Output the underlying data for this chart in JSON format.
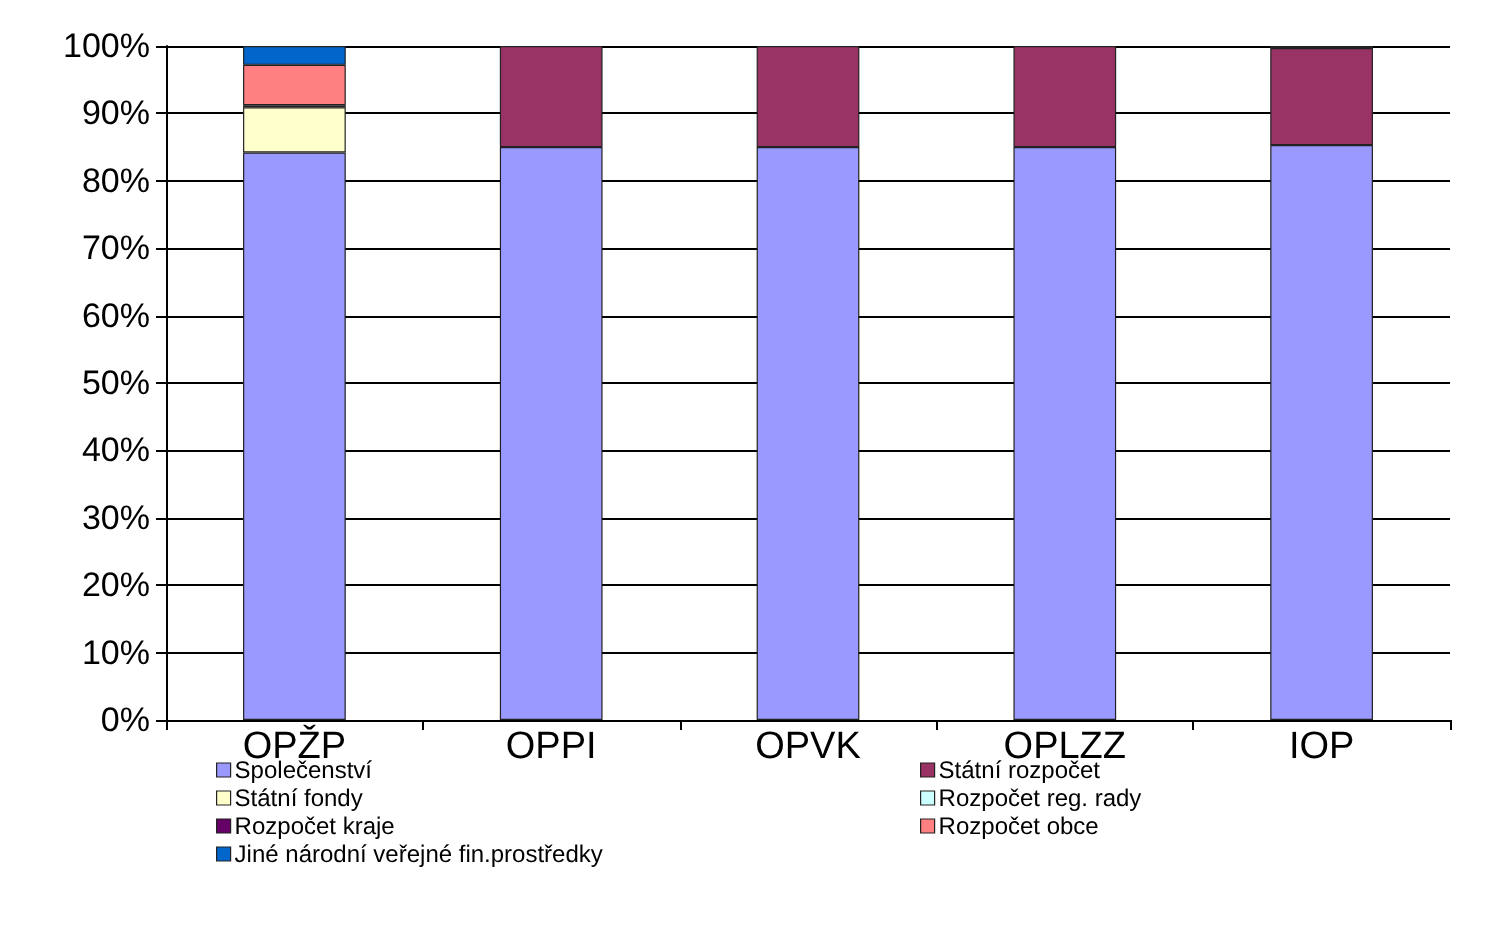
{
  "chart_data": {
    "type": "bar",
    "stacked": true,
    "categories": [
      "OPŽP",
      "OPPI",
      "OPVK",
      "OPLZZ",
      "IOP"
    ],
    "series": [
      {
        "name": "Společenství",
        "color": "#9999ff",
        "values": [
          84.2,
          85,
          85,
          85,
          85.3
        ]
      },
      {
        "name": "Státní rozpočet",
        "color": "#993366",
        "values": [
          0,
          15,
          15,
          15,
          14.4
        ]
      },
      {
        "name": "Státní fondy",
        "color": "#ffffcc",
        "values": [
          6.7,
          0,
          0,
          0,
          0
        ]
      },
      {
        "name": "Rozpočet reg. rady",
        "color": "#ccffff",
        "values": [
          0,
          0,
          0,
          0,
          0
        ]
      },
      {
        "name": "Rozpočet kraje",
        "color": "#660066",
        "values": [
          0.3,
          0,
          0,
          0,
          0.3
        ]
      },
      {
        "name": "Rozpočet obce",
        "color": "#ff8080",
        "values": [
          6.0,
          0,
          0,
          0,
          0
        ]
      },
      {
        "name": "Jiné národní veřejné fin.prostředky",
        "color": "#0066cc",
        "values": [
          2.8,
          0,
          0,
          0,
          0
        ]
      }
    ],
    "ylim": [
      0,
      100
    ],
    "yticks": [
      {
        "value": 0,
        "label": "0%"
      },
      {
        "value": 10,
        "label": "10%"
      },
      {
        "value": 20,
        "label": "20%"
      },
      {
        "value": 30,
        "label": "30%"
      },
      {
        "value": 40,
        "label": "40%"
      },
      {
        "value": 50,
        "label": "50%"
      },
      {
        "value": 60,
        "label": "60%"
      },
      {
        "value": 70,
        "label": "70%"
      },
      {
        "value": 80,
        "label": "80%"
      },
      {
        "value": 90,
        "label": "90%"
      },
      {
        "value": 100,
        "label": "100%"
      }
    ],
    "grid": "y",
    "legend": "bottom"
  }
}
